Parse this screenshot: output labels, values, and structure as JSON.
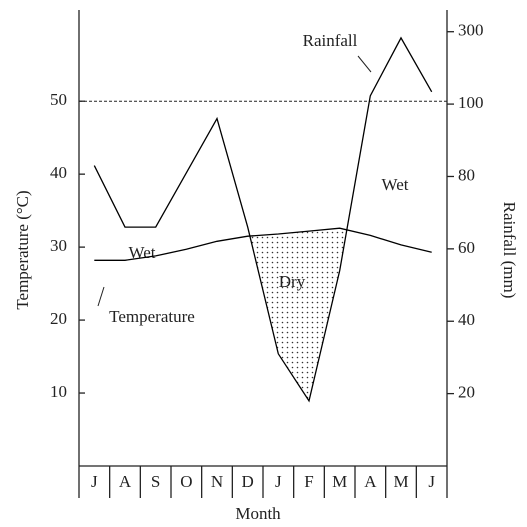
{
  "chart_data": {
    "type": "line",
    "x_label": "Month",
    "y_label": "Temperature (°C)",
    "y2_label": "Rainfall (mm)",
    "categories": [
      "J",
      "A",
      "S",
      "O",
      "N",
      "D",
      "J",
      "F",
      "M",
      "A",
      "M",
      "J"
    ],
    "series": [
      {
        "name": "Temperature",
        "color": "#000000",
        "values": [
          28.2,
          28.2,
          28.8,
          29.7,
          30.8,
          31.5,
          31.8,
          32.2,
          32.6,
          31.6,
          30.3,
          29.3
        ]
      },
      {
        "name": "Rainfall",
        "color": "#000000",
        "axis": "y2",
        "values": [
          83,
          66,
          66,
          81,
          96,
          66,
          31,
          18,
          54,
          123,
          283,
          134
        ]
      }
    ],
    "ylim": [
      0,
      62.5
    ],
    "yticks": [
      10,
      20,
      30,
      40,
      50
    ],
    "y2lim": [
      0,
      360
    ],
    "y2ticks": [
      20,
      40,
      60,
      80,
      100,
      300
    ],
    "y2scale": {
      "break": 100,
      "factor": 0.1
    },
    "reference_line": {
      "y": 50,
      "style": "dashed"
    },
    "annotations": [
      "Wet",
      "Wet",
      "Dry"
    ],
    "shade_dry": true
  }
}
